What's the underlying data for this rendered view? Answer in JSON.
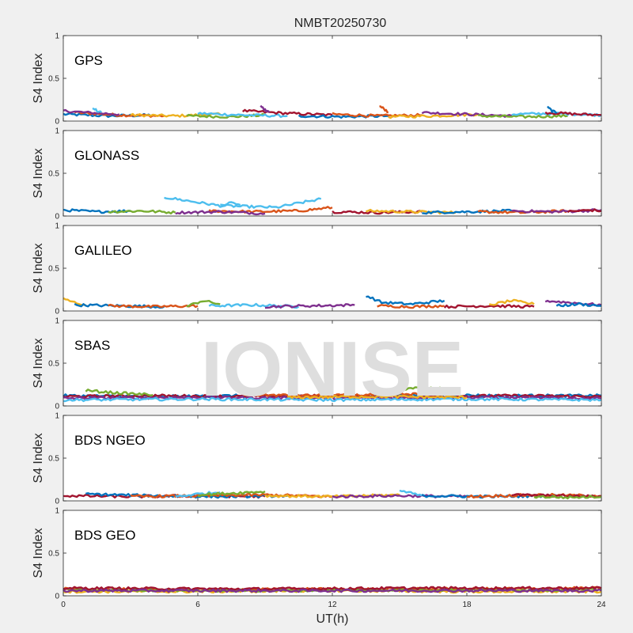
{
  "figure": {
    "title": "NMBT20250730",
    "watermark": "IONISE",
    "xlabel": "UT(h)"
  },
  "colors": {
    "figure_bg": "#f0f0f0",
    "axes_bg": "#ffffff",
    "axis": "#262626",
    "watermark": "#dedede",
    "series": [
      "#0072BD",
      "#D95319",
      "#EDB120",
      "#7E2F8E",
      "#77AC30",
      "#4DBEEE",
      "#A2142F"
    ]
  },
  "chart_data": {
    "type": "line",
    "xlim": [
      0,
      24
    ],
    "x_ticks": [
      0,
      6,
      12,
      18,
      24
    ],
    "x_tick_labels": [
      "0",
      "6",
      "12",
      "18",
      "24"
    ],
    "y_ticks": [
      0,
      0.5,
      1
    ],
    "y_tick_labels": [
      "0",
      "0.5",
      "1"
    ],
    "grid": false,
    "panels": [
      {
        "name": "GPS",
        "ylabel": "S4 Index",
        "ylim": [
          0,
          1
        ],
        "arcs": [
          {
            "c": 0,
            "x": [
              0.0,
              2.0,
              4.0
            ],
            "y": [
              0.08,
              0.06,
              0.07
            ]
          },
          {
            "c": 1,
            "x": [
              0.5,
              2.5,
              4.5
            ],
            "y": [
              0.1,
              0.07,
              0.06
            ]
          },
          {
            "c": 2,
            "x": [
              3.0,
              5.0,
              7.0
            ],
            "y": [
              0.07,
              0.06,
              0.08
            ]
          },
          {
            "c": 3,
            "x": [
              0.0,
              1.0,
              2.5
            ],
            "y": [
              0.12,
              0.1,
              0.08
            ]
          },
          {
            "c": 4,
            "x": [
              5.5,
              7.5,
              9.0
            ],
            "y": [
              0.06,
              0.05,
              0.07
            ]
          },
          {
            "c": 5,
            "x": [
              6.0,
              8.0,
              10.0
            ],
            "y": [
              0.09,
              0.07,
              0.06
            ]
          },
          {
            "c": 6,
            "x": [
              8.0,
              10.0,
              12.0
            ],
            "y": [
              0.12,
              0.09,
              0.07
            ]
          },
          {
            "c": 0,
            "x": [
              10.5,
              12.5,
              14.5
            ],
            "y": [
              0.06,
              0.05,
              0.06
            ]
          },
          {
            "c": 1,
            "x": [
              12.0,
              14.0,
              16.0
            ],
            "y": [
              0.08,
              0.06,
              0.07
            ]
          },
          {
            "c": 2,
            "x": [
              14.5,
              16.5,
              18.5
            ],
            "y": [
              0.05,
              0.06,
              0.08
            ]
          },
          {
            "c": 3,
            "x": [
              16.0,
              18.0,
              20.0
            ],
            "y": [
              0.1,
              0.08,
              0.06
            ]
          },
          {
            "c": 4,
            "x": [
              18.5,
              20.5,
              22.5
            ],
            "y": [
              0.06,
              0.05,
              0.06
            ]
          },
          {
            "c": 5,
            "x": [
              20.0,
              22.0,
              24.0
            ],
            "y": [
              0.08,
              0.09,
              0.07
            ]
          },
          {
            "c": 6,
            "x": [
              21.5,
              23.0,
              24.0
            ],
            "y": [
              0.1,
              0.08,
              0.07
            ]
          },
          {
            "c": 5,
            "x": [
              1.3,
              1.5,
              1.7
            ],
            "y": [
              0.16,
              0.12,
              0.1
            ]
          },
          {
            "c": 3,
            "x": [
              8.8,
              9.0,
              9.2
            ],
            "y": [
              0.17,
              0.13,
              0.1
            ]
          },
          {
            "c": 1,
            "x": [
              14.1,
              14.3,
              14.5
            ],
            "y": [
              0.18,
              0.14,
              0.1
            ]
          },
          {
            "c": 0,
            "x": [
              21.6,
              21.8,
              22.0
            ],
            "y": [
              0.16,
              0.12,
              0.09
            ]
          }
        ]
      },
      {
        "name": "GLONASS",
        "ylabel": "S4 Index",
        "ylim": [
          0,
          1
        ],
        "arcs": [
          {
            "c": 5,
            "x": [
              4.5,
              7.0,
              9.5,
              11.5
            ],
            "y": [
              0.22,
              0.12,
              0.1,
              0.2
            ]
          },
          {
            "c": 1,
            "x": [
              6.5,
              8.5,
              10.5,
              12.0
            ],
            "y": [
              0.06,
              0.05,
              0.06,
              0.1
            ]
          },
          {
            "c": 0,
            "x": [
              0.0,
              1.5,
              3.0
            ],
            "y": [
              0.07,
              0.05,
              0.06
            ]
          },
          {
            "c": 4,
            "x": [
              2.0,
              3.5,
              5.0
            ],
            "y": [
              0.05,
              0.06,
              0.04
            ]
          },
          {
            "c": 3,
            "x": [
              5.0,
              7.0,
              9.0
            ],
            "y": [
              0.04,
              0.05,
              0.03
            ]
          },
          {
            "c": 6,
            "x": [
              12.0,
              14.0,
              16.0
            ],
            "y": [
              0.05,
              0.04,
              0.05
            ]
          },
          {
            "c": 2,
            "x": [
              13.5,
              15.5,
              17.5
            ],
            "y": [
              0.06,
              0.05,
              0.04
            ]
          },
          {
            "c": 0,
            "x": [
              16.0,
              18.0,
              20.0
            ],
            "y": [
              0.04,
              0.05,
              0.06
            ]
          },
          {
            "c": 1,
            "x": [
              18.5,
              20.5,
              22.5
            ],
            "y": [
              0.05,
              0.04,
              0.06
            ]
          },
          {
            "c": 3,
            "x": [
              20.0,
              22.0,
              24.0
            ],
            "y": [
              0.06,
              0.05,
              0.07
            ]
          },
          {
            "c": 6,
            "x": [
              22.5,
              23.5,
              24.0
            ],
            "y": [
              0.05,
              0.07,
              0.06
            ]
          },
          {
            "c": 5,
            "x": [
              7.0,
              7.5,
              7.9
            ],
            "y": [
              0.12,
              0.16,
              0.13
            ]
          }
        ]
      },
      {
        "name": "GALILEO",
        "ylabel": "S4 Index",
        "ylim": [
          0,
          1
        ],
        "arcs": [
          {
            "c": 2,
            "x": [
              0.0,
              0.5,
              1.0
            ],
            "y": [
              0.14,
              0.1,
              0.07
            ]
          },
          {
            "c": 0,
            "x": [
              0.5,
              2.5,
              4.5
            ],
            "y": [
              0.07,
              0.06,
              0.05
            ]
          },
          {
            "c": 1,
            "x": [
              2.0,
              4.0,
              6.0
            ],
            "y": [
              0.06,
              0.05,
              0.06
            ]
          },
          {
            "c": 4,
            "x": [
              5.5,
              6.2,
              7.0
            ],
            "y": [
              0.05,
              0.12,
              0.08
            ]
          },
          {
            "c": 5,
            "x": [
              6.5,
              8.5,
              10.5
            ],
            "y": [
              0.06,
              0.07,
              0.05
            ]
          },
          {
            "c": 3,
            "x": [
              9.0,
              11.0,
              13.0
            ],
            "y": [
              0.05,
              0.06,
              0.07
            ]
          },
          {
            "c": 0,
            "x": [
              13.5,
              14.2,
              15.5,
              17.0
            ],
            "y": [
              0.18,
              0.1,
              0.08,
              0.12
            ]
          },
          {
            "c": 1,
            "x": [
              14.0,
              15.5,
              17.0
            ],
            "y": [
              0.06,
              0.05,
              0.06
            ]
          },
          {
            "c": 6,
            "x": [
              17.0,
              19.0,
              21.0
            ],
            "y": [
              0.05,
              0.06,
              0.05
            ]
          },
          {
            "c": 2,
            "x": [
              19.0,
              20.0,
              21.0
            ],
            "y": [
              0.07,
              0.12,
              0.08
            ]
          },
          {
            "c": 3,
            "x": [
              21.5,
              22.5,
              24.0
            ],
            "y": [
              0.12,
              0.1,
              0.07
            ]
          },
          {
            "c": 0,
            "x": [
              22.0,
              23.0,
              24.0
            ],
            "y": [
              0.06,
              0.08,
              0.06
            ]
          }
        ]
      },
      {
        "name": "SBAS",
        "ylabel": "S4 Index",
        "ylim": [
          0,
          1
        ],
        "arcs": [
          {
            "c": 0,
            "x": [
              0.0,
              4.0,
              8.0,
              12.0,
              16.0,
              20.0,
              24.0
            ],
            "y": [
              0.12,
              0.11,
              0.12,
              0.11,
              0.13,
              0.12,
              0.12
            ]
          },
          {
            "c": 6,
            "x": [
              0.0,
              4.0,
              8.0,
              12.0,
              16.0,
              20.0,
              24.0
            ],
            "y": [
              0.11,
              0.12,
              0.11,
              0.12,
              0.11,
              0.12,
              0.11
            ]
          },
          {
            "c": 3,
            "x": [
              0.0,
              6.0,
              12.0,
              18.0,
              24.0
            ],
            "y": [
              0.09,
              0.1,
              0.09,
              0.1,
              0.09
            ]
          },
          {
            "c": 5,
            "x": [
              0.0,
              6.0,
              12.0,
              18.0,
              24.0
            ],
            "y": [
              0.07,
              0.08,
              0.07,
              0.08,
              0.07
            ]
          },
          {
            "c": 4,
            "x": [
              1.0,
              2.5,
              4.0
            ],
            "y": [
              0.18,
              0.15,
              0.13
            ]
          },
          {
            "c": 4,
            "x": [
              14.0,
              15.5,
              17.0
            ],
            "y": [
              0.16,
              0.21,
              0.2
            ]
          },
          {
            "c": 1,
            "x": [
              8.0,
              12.0,
              16.0
            ],
            "y": [
              0.13,
              0.12,
              0.14
            ]
          },
          {
            "c": 2,
            "x": [
              10.0,
              14.0,
              18.0
            ],
            "y": [
              0.1,
              0.11,
              0.1
            ]
          }
        ]
      },
      {
        "name": "BDS NGEO",
        "ylabel": "S4 Index",
        "ylim": [
          0,
          1
        ],
        "arcs": [
          {
            "c": 6,
            "x": [
              0.0,
              3.0,
              6.0,
              9.0
            ],
            "y": [
              0.06,
              0.05,
              0.06,
              0.05
            ]
          },
          {
            "c": 0,
            "x": [
              1.0,
              4.0,
              7.0,
              10.0
            ],
            "y": [
              0.08,
              0.06,
              0.05,
              0.06
            ]
          },
          {
            "c": 1,
            "x": [
              3.0,
              6.0,
              9.0,
              12.0
            ],
            "y": [
              0.05,
              0.06,
              0.07,
              0.05
            ]
          },
          {
            "c": 5,
            "x": [
              5.0,
              6.0,
              7.0
            ],
            "y": [
              0.05,
              0.08,
              0.1
            ]
          },
          {
            "c": 4,
            "x": [
              6.0,
              7.5,
              9.0
            ],
            "y": [
              0.07,
              0.09,
              0.11
            ]
          },
          {
            "c": 2,
            "x": [
              9.0,
              12.0,
              15.0
            ],
            "y": [
              0.06,
              0.05,
              0.07
            ]
          },
          {
            "c": 3,
            "x": [
              12.0,
              15.0,
              18.0
            ],
            "y": [
              0.05,
              0.06,
              0.05
            ]
          },
          {
            "c": 5,
            "x": [
              15.0,
              15.5,
              16.0
            ],
            "y": [
              0.12,
              0.09,
              0.06
            ]
          },
          {
            "c": 0,
            "x": [
              16.0,
              19.0,
              22.0
            ],
            "y": [
              0.06,
              0.05,
              0.06
            ]
          },
          {
            "c": 1,
            "x": [
              18.0,
              21.0,
              24.0
            ],
            "y": [
              0.05,
              0.07,
              0.06
            ]
          },
          {
            "c": 6,
            "x": [
              20.0,
              22.0,
              24.0
            ],
            "y": [
              0.07,
              0.06,
              0.05
            ]
          },
          {
            "c": 4,
            "x": [
              21.0,
              22.5,
              24.0
            ],
            "y": [
              0.05,
              0.04,
              0.05
            ]
          }
        ]
      },
      {
        "name": "BDS GEO",
        "ylabel": "S4 Index",
        "ylim": [
          0,
          1
        ],
        "arcs": [
          {
            "c": 2,
            "x": [
              0.0,
              6.0,
              12.0,
              18.0,
              24.0
            ],
            "y": [
              0.05,
              0.05,
              0.06,
              0.05,
              0.05
            ]
          },
          {
            "c": 1,
            "x": [
              0.0,
              6.0,
              12.0,
              18.0,
              24.0
            ],
            "y": [
              0.08,
              0.07,
              0.08,
              0.08,
              0.09
            ]
          },
          {
            "c": 4,
            "x": [
              0.0,
              8.0,
              16.0,
              24.0
            ],
            "y": [
              0.07,
              0.06,
              0.07,
              0.07
            ]
          },
          {
            "c": 6,
            "x": [
              0.0,
              8.0,
              16.0,
              24.0
            ],
            "y": [
              0.09,
              0.08,
              0.09,
              0.09
            ]
          },
          {
            "c": 3,
            "x": [
              0.0,
              12.0,
              24.0
            ],
            "y": [
              0.06,
              0.06,
              0.06
            ]
          }
        ]
      }
    ]
  }
}
